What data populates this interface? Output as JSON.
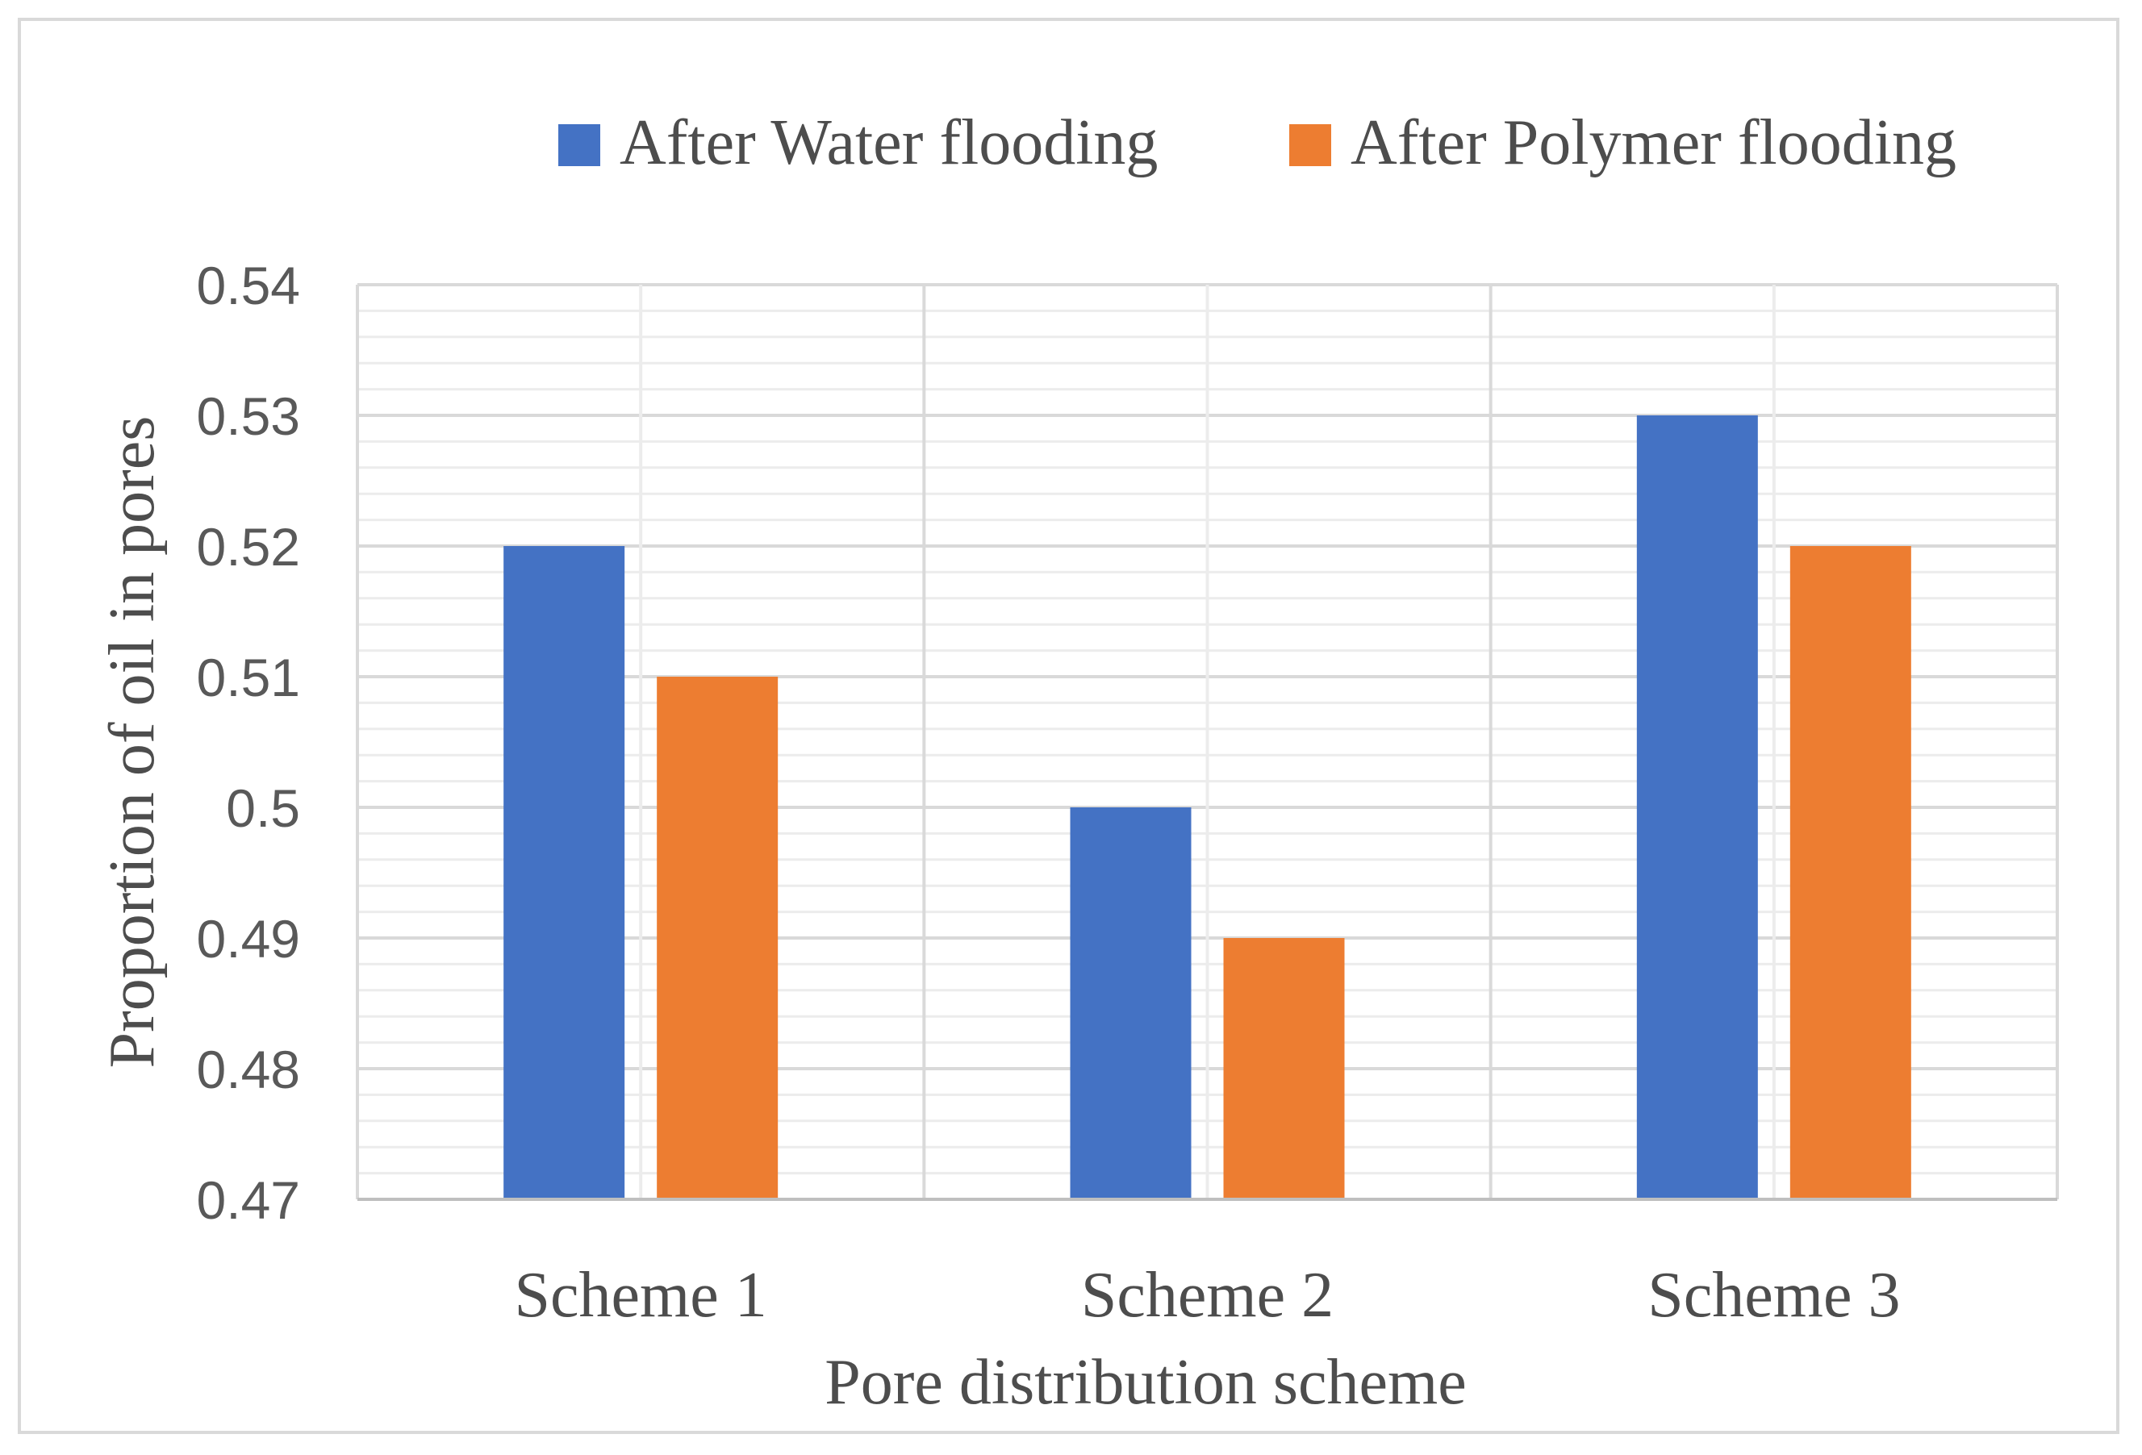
{
  "chart_data": {
    "type": "bar",
    "title": "",
    "xlabel": "Pore distribution scheme",
    "ylabel": "Proportion of oil in pores",
    "categories": [
      "Scheme 1",
      "Scheme 2",
      "Scheme 3"
    ],
    "series": [
      {
        "name": "After Water flooding",
        "color": "#4472c4",
        "values": [
          0.52,
          0.5,
          0.53
        ]
      },
      {
        "name": "After Polymer flooding",
        "color": "#ed7d31",
        "values": [
          0.51,
          0.49,
          0.52
        ]
      }
    ],
    "ylim": [
      0.47,
      0.54
    ],
    "yticks": [
      "0.47",
      "0.48",
      "0.49",
      "0.5",
      "0.51",
      "0.52",
      "0.53",
      "0.54"
    ],
    "grid": true,
    "legend_position": "top-right"
  }
}
